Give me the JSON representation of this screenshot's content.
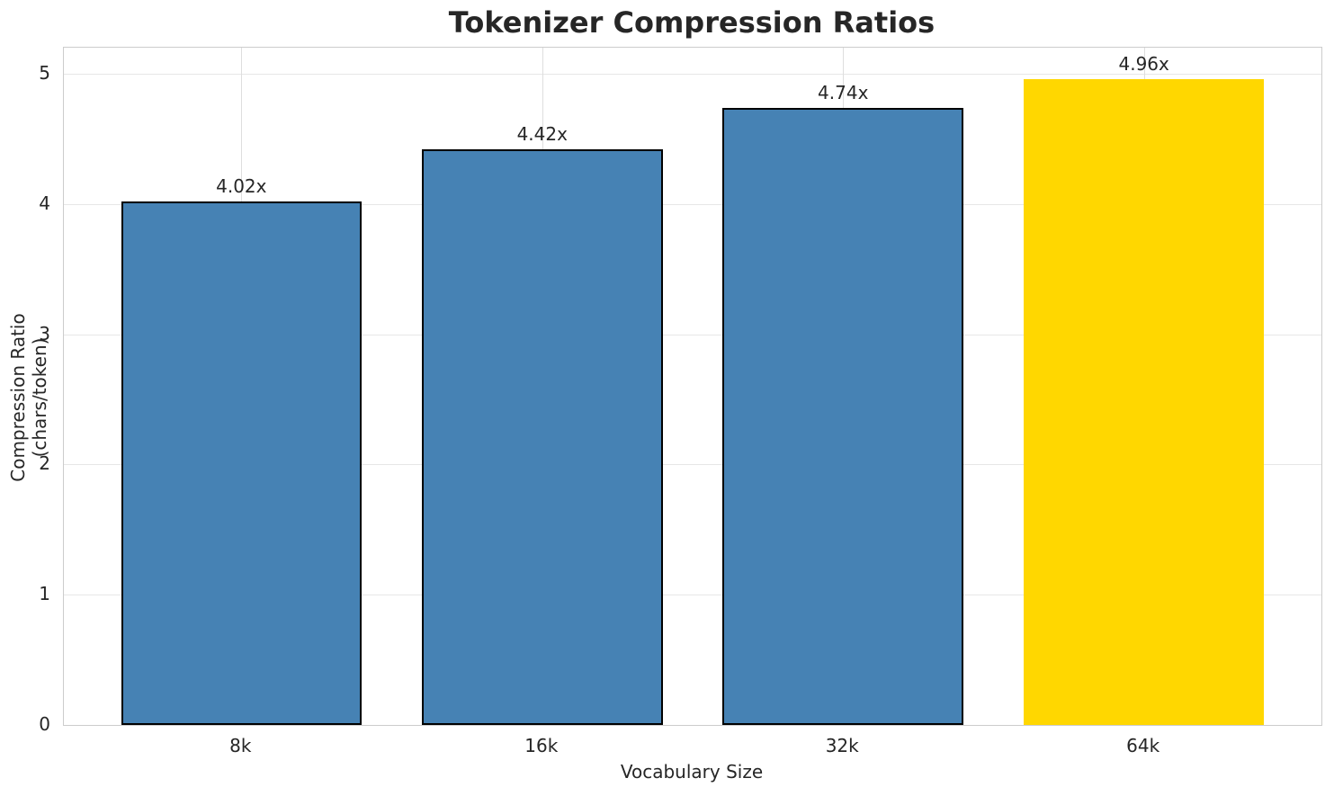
{
  "chart_data": {
    "type": "bar",
    "title": "Tokenizer Compression Ratios",
    "xlabel": "Vocabulary Size",
    "ylabel": "Compression Ratio (chars/token)",
    "categories": [
      "8k",
      "16k",
      "32k",
      "64k"
    ],
    "values": [
      4.02,
      4.42,
      4.74,
      4.96
    ],
    "bar_labels": [
      "4.02x",
      "4.42x",
      "4.74x",
      "4.96x"
    ],
    "bar_colors": [
      "#4682B4",
      "#4682B4",
      "#4682B4",
      "#FFD700"
    ],
    "bar_edge_colors": [
      "#000000",
      "#000000",
      "#000000",
      "none"
    ],
    "yticks": [
      0,
      1,
      2,
      3,
      4,
      5
    ],
    "ylim": [
      0,
      5.2
    ],
    "xlim": [
      -0.59,
      3.59
    ],
    "bar_width_units": 0.8,
    "grid": "both",
    "legend": "none",
    "colors": {
      "grid_h": "#e7e7e7",
      "grid_v": "#dedede",
      "spine": "#cccccc",
      "text": "#262626",
      "highlight": "#FFD700",
      "base": "#4682B4"
    }
  }
}
